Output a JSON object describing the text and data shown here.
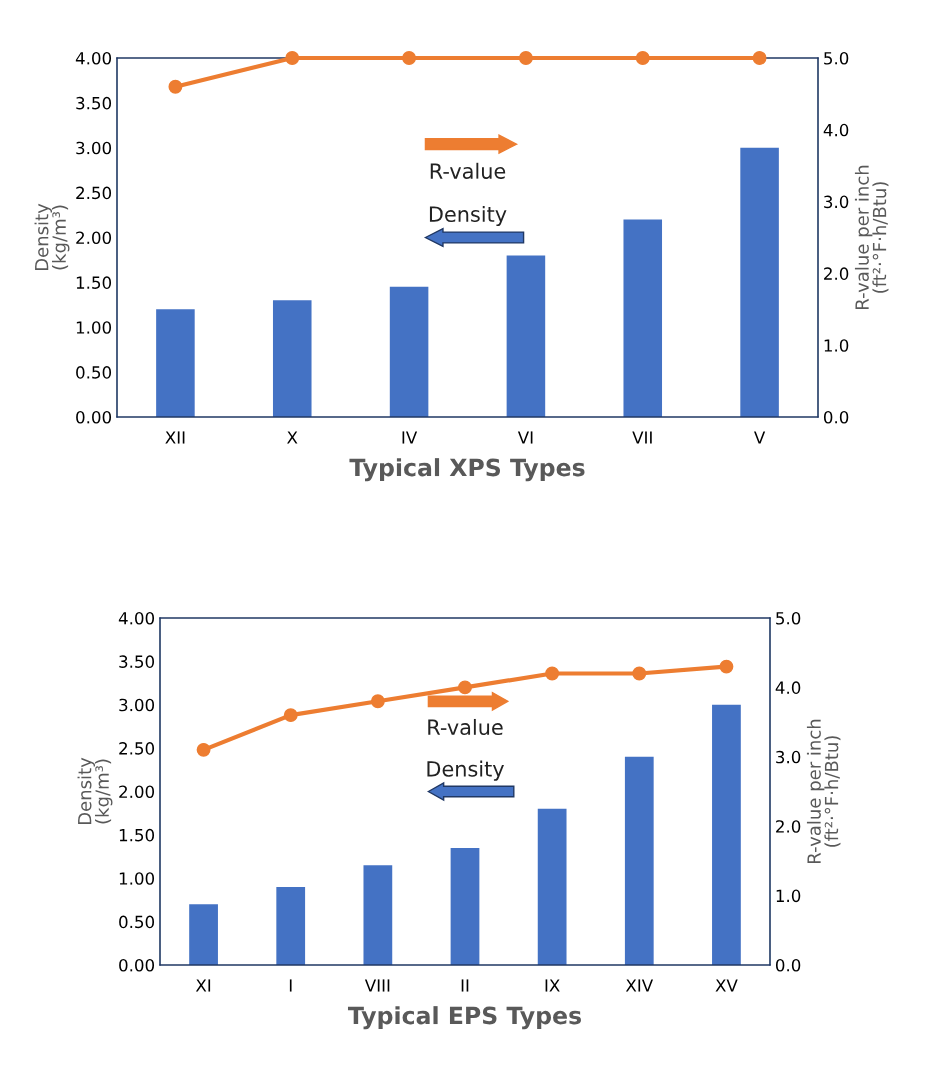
{
  "chart_data": [
    {
      "type": "bar",
      "xlabel": "Typical XPS Types",
      "ylabel": "Density\n(kg/m³)",
      "y2label": "R-value per inch\n(ft²·°F·h/Btu)",
      "categories": [
        "XII",
        "X",
        "IV",
        "VI",
        "VII",
        "V"
      ],
      "series": [
        {
          "color": "#4472c4",
          "values": [
            1.2,
            1.3,
            1.45,
            1.8,
            2.2,
            3.0
          ]
        },
        {
          "type": "line",
          "axis": "y2",
          "color": "#ed7d31",
          "marker": "circle",
          "values": [
            4.6,
            5.0,
            5.0,
            5.0,
            5.0,
            5.0
          ]
        }
      ],
      "annotations": [
        "R-value",
        "Density"
      ],
      "ylim": [
        0,
        4
      ],
      "yticks": [
        {
          "value": 0,
          "label": "0.00"
        },
        {
          "value": 0.5,
          "label": "0.50"
        },
        {
          "value": 1,
          "label": "1.00"
        },
        {
          "value": 1.5,
          "label": "1.50"
        },
        {
          "value": 2,
          "label": "2.00"
        },
        {
          "value": 2.5,
          "label": "2.50"
        },
        {
          "value": 3,
          "label": "3.00"
        },
        {
          "value": 3.5,
          "label": "3.50"
        },
        {
          "value": 4,
          "label": "4.00"
        }
      ],
      "y2lim": [
        0,
        5
      ],
      "y2ticks": [
        {
          "value": 0,
          "label": "0.0"
        },
        {
          "value": 1,
          "label": "1.0"
        },
        {
          "value": 2,
          "label": "2.0"
        },
        {
          "value": 3,
          "label": "3.0"
        },
        {
          "value": 4,
          "label": "4.0"
        },
        {
          "value": 5,
          "label": "5.0"
        }
      ]
    },
    {
      "type": "bar",
      "xlabel": "Typical EPS Types",
      "ylabel": "Density\n(kg/m³)",
      "y2label": "R-value per inch\n(ft²·°F·h/Btu)",
      "categories": [
        "XI",
        "I",
        "VIII",
        "II",
        "IX",
        "XIV",
        "XV"
      ],
      "series": [
        {
          "color": "#4472c4",
          "values": [
            0.7,
            0.9,
            1.15,
            1.35,
            1.8,
            2.4,
            3.0
          ]
        },
        {
          "type": "line",
          "axis": "y2",
          "color": "#ed7d31",
          "marker": "circle",
          "values": [
            3.1,
            3.6,
            3.8,
            4.0,
            4.2,
            4.2,
            4.3
          ]
        }
      ],
      "annotations": [
        "R-value",
        "Density"
      ],
      "ylim": [
        0,
        4
      ],
      "yticks": [
        {
          "value": 0,
          "label": "0.00"
        },
        {
          "value": 0.5,
          "label": "0.50"
        },
        {
          "value": 1,
          "label": "1.00"
        },
        {
          "value": 1.5,
          "label": "1.50"
        },
        {
          "value": 2,
          "label": "2.00"
        },
        {
          "value": 2.5,
          "label": "2.50"
        },
        {
          "value": 3,
          "label": "3.00"
        },
        {
          "value": 3.5,
          "label": "3.50"
        },
        {
          "value": 4,
          "label": "4.00"
        }
      ],
      "y2lim": [
        0,
        5
      ],
      "y2ticks": [
        {
          "value": 0,
          "label": "0.0"
        },
        {
          "value": 1,
          "label": "1.0"
        },
        {
          "value": 2,
          "label": "2.0"
        },
        {
          "value": 3,
          "label": "3.0"
        },
        {
          "value": 4,
          "label": "4.0"
        },
        {
          "value": 5,
          "label": "5.0"
        }
      ]
    }
  ]
}
